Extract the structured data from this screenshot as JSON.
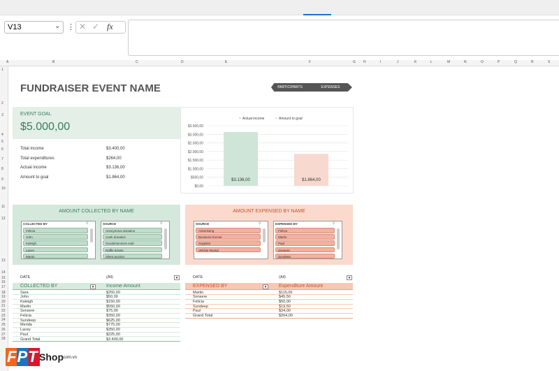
{
  "toolbar": {
    "name_box": "V13",
    "fx": "fx"
  },
  "columns": [
    "A",
    "B",
    "C",
    "D",
    "E",
    "F",
    "G",
    "H",
    "I",
    "J",
    "K",
    "L",
    "M",
    "N",
    "O",
    "P",
    "Q",
    "R",
    "S"
  ],
  "rows": [
    1,
    2,
    3,
    4,
    5,
    6,
    7,
    8,
    9,
    10,
    11,
    12,
    13,
    14,
    15,
    16,
    17,
    18,
    19,
    20,
    21,
    22,
    23,
    24,
    25,
    26,
    27,
    28
  ],
  "title": "FUNDRAISER EVENT NAME",
  "nav": [
    "PARTICIPANTS",
    "EXPENSES"
  ],
  "goal": {
    "label": "EVENT GOAL",
    "value": "$5.000,00"
  },
  "summary": [
    [
      "Total income",
      "$3.400,00"
    ],
    [
      "Total expenditures",
      "$264,00"
    ],
    [
      "Actual income",
      "$3.136,00"
    ],
    [
      "Amount to goal",
      "$1.864,00"
    ]
  ],
  "chart_data": {
    "type": "bar",
    "series": [
      {
        "name": "Actual income",
        "color": "#cfe5d8",
        "values": [
          3136
        ],
        "value_labels": [
          "$3.136,00"
        ]
      },
      {
        "name": "Amount to goal",
        "color": "#f8d9cf",
        "values": [
          1864
        ],
        "value_labels": [
          "$1.864,00"
        ]
      }
    ],
    "ylim": [
      0,
      3500
    ],
    "yticks": [
      {
        "value": 0,
        "label": "$0,00"
      },
      {
        "value": 500,
        "label": "$500,00"
      },
      {
        "value": 1000,
        "label": "$1.000,00"
      },
      {
        "value": 1500,
        "label": "$1.500,00"
      },
      {
        "value": 2000,
        "label": "$2.000,00"
      },
      {
        "value": 2500,
        "label": "$2.500,00"
      },
      {
        "value": 3000,
        "label": "$3.000,00"
      },
      {
        "value": 3500,
        "label": "$3.500,00"
      }
    ],
    "grid": true
  },
  "slicers": [
    {
      "title": "AMOUNT COLLECTED BY NAME",
      "lists": [
        {
          "header": "COLLECTED BY",
          "items": [
            "Felicia",
            "John",
            "Kaleigh",
            "Lacey",
            "Martin"
          ]
        },
        {
          "header": "SOURCE",
          "items": [
            "Anonymous donation",
            "Cash donation",
            "Goods/services sold",
            "Raffle tickets",
            "Silent auction"
          ]
        }
      ]
    },
    {
      "title": "AMOUNT EXPENSED BY NAME",
      "lists": [
        {
          "header": "SOURCE",
          "items": [
            "Advertising",
            "Business license",
            "Supplies",
            "Vehicle Rental"
          ]
        },
        {
          "header": "EXPENSED BY",
          "items": [
            "Felicia",
            "Martin",
            "Paul",
            "Sonsere",
            "Sundeep"
          ]
        }
      ]
    }
  ],
  "pivots": [
    {
      "filter": [
        "DATE",
        "(All)"
      ],
      "headers": [
        "COLLECTED BY",
        "Income Amount"
      ],
      "rows": [
        [
          "Sara",
          "$250,00"
        ],
        [
          "John",
          "$50,00"
        ],
        [
          "Kaleigh",
          "$150,00"
        ],
        [
          "Martin",
          "$550,00"
        ],
        [
          "Sonsere",
          "$75,00"
        ],
        [
          "Felicia",
          "$350,00"
        ],
        [
          "Sundeep",
          "$625,00"
        ],
        [
          "Merida",
          "$775,00"
        ],
        [
          "Lacey",
          "$350,00"
        ],
        [
          "Paul",
          "$225,00"
        ]
      ],
      "total": [
        "Grand Total",
        "$3.400,00"
      ]
    },
    {
      "filter": [
        "DATE",
        "(All)"
      ],
      "headers": [
        "EXPENSED BY",
        "Expenditure Amount"
      ],
      "rows": [
        [
          "Martin",
          "$115,00"
        ],
        [
          "Sonsere",
          "$45,50"
        ],
        [
          "Felicia",
          "$50,00"
        ],
        [
          "Sundeep",
          "$19,50"
        ],
        [
          "Paul",
          "$34,00"
        ]
      ],
      "total": [
        "Grand Total",
        "$264,00"
      ]
    }
  ],
  "logo": {
    "brand": "FPT",
    "name": "Shop",
    "domain": ".com.vn"
  }
}
